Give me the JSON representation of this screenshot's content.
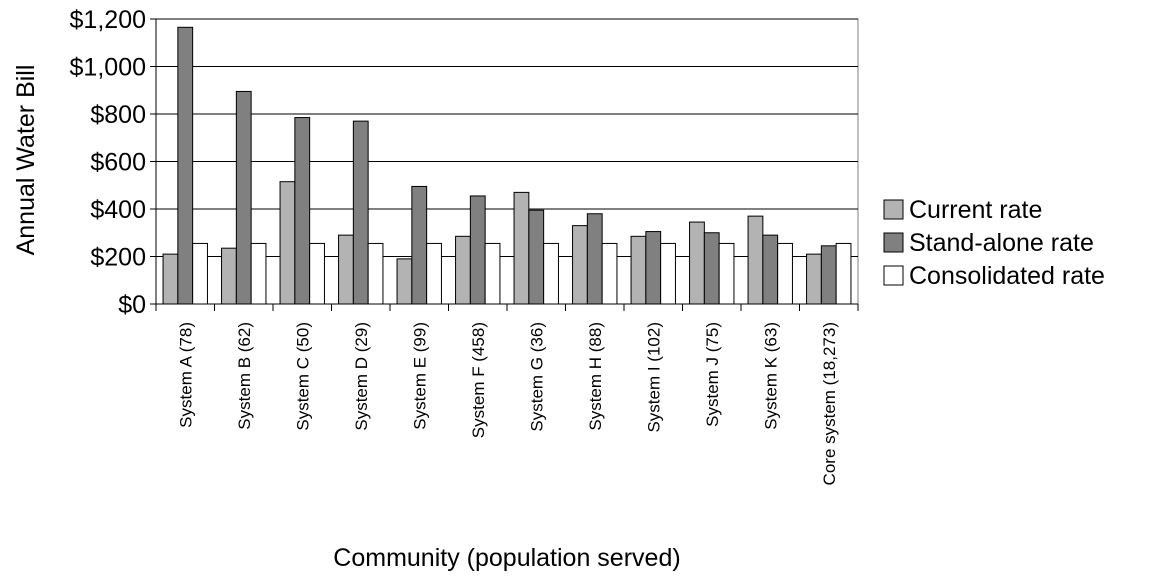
{
  "chart_data": {
    "type": "bar",
    "title": "",
    "xlabel": "Community (population served)",
    "ylabel": "Annual Water Bill",
    "ylim": [
      0,
      1200
    ],
    "y_ticks": [
      0,
      200,
      400,
      600,
      800,
      1000,
      1200
    ],
    "y_tick_labels": [
      "$0",
      "$200",
      "$400",
      "$600",
      "$800",
      "$1,000",
      "$1,200"
    ],
    "grid": "horizontal",
    "legend_position": "right",
    "categories": [
      "System A (78)",
      "System B (62)",
      "System C (50)",
      "System D (29)",
      "System E (99)",
      "System F (458)",
      "System G (36)",
      "System H (88)",
      "System I (102)",
      "System J (75)",
      "System K (63)",
      "Core system (18,273)"
    ],
    "series": [
      {
        "name": "Current rate",
        "color": "#b3b3b3",
        "values": [
          210,
          235,
          515,
          290,
          190,
          285,
          470,
          330,
          285,
          345,
          370,
          210
        ]
      },
      {
        "name": "Stand-alone rate",
        "color": "#808080",
        "values": [
          1165,
          895,
          785,
          770,
          495,
          455,
          395,
          380,
          305,
          300,
          290,
          245
        ]
      },
      {
        "name": "Consolidated rate",
        "color": "#ffffff",
        "values": [
          255,
          255,
          255,
          255,
          255,
          255,
          255,
          255,
          255,
          255,
          255,
          255
        ]
      }
    ]
  }
}
